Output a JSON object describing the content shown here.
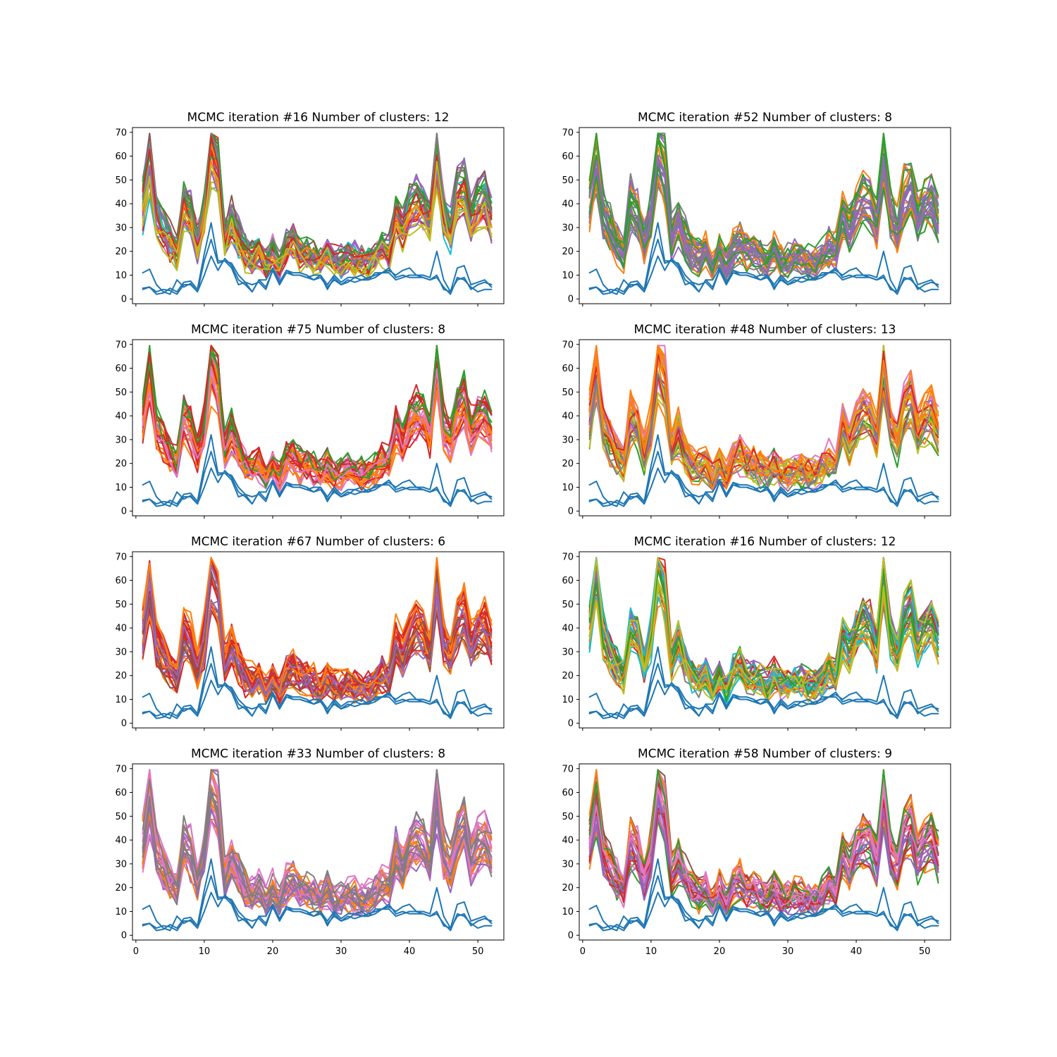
{
  "figure": {
    "palette": [
      "#1f77b4",
      "#ff7f0e",
      "#2ca02c",
      "#d62728",
      "#9467bd",
      "#8c564b",
      "#e377c2",
      "#7f7f7f",
      "#bcbd22",
      "#17becf"
    ]
  },
  "chart_data": [
    {
      "type": "line",
      "title": "MCMC iteration #16 Number of clusters: 12",
      "xlim": [
        -0.5,
        53.8
      ],
      "ylim": [
        -2,
        72
      ],
      "xticks": [
        0,
        10,
        20,
        30,
        40,
        50
      ],
      "yticks": [
        0,
        10,
        20,
        30,
        40,
        50,
        60,
        70
      ],
      "show_xticklabels": false,
      "num_clusters": 12,
      "dominant_colors": [
        "#2ca02c",
        "#ff7f0e",
        "#bcbd22",
        "#8c564b",
        "#17becf",
        "#9467bd",
        "#7f7f7f",
        "#e377c2",
        "#d62728"
      ]
    },
    {
      "type": "line",
      "title": "MCMC iteration #52 Number of clusters: 8",
      "xlim": [
        -0.5,
        53.8
      ],
      "ylim": [
        -2,
        72
      ],
      "xticks": [
        0,
        10,
        20,
        30,
        40,
        50
      ],
      "yticks": [
        0,
        10,
        20,
        30,
        40,
        50,
        60,
        70
      ],
      "show_xticklabels": false,
      "num_clusters": 8,
      "dominant_colors": [
        "#ff7f0e",
        "#2ca02c",
        "#7f7f7f",
        "#9467bd"
      ]
    },
    {
      "type": "line",
      "title": "MCMC iteration #75 Number of clusters: 8",
      "xlim": [
        -0.5,
        53.8
      ],
      "ylim": [
        -2,
        72
      ],
      "xticks": [
        0,
        10,
        20,
        30,
        40,
        50
      ],
      "yticks": [
        0,
        10,
        20,
        30,
        40,
        50,
        60,
        70
      ],
      "show_xticklabels": false,
      "num_clusters": 8,
      "dominant_colors": [
        "#ff7f0e",
        "#9467bd",
        "#8c564b",
        "#d62728",
        "#2ca02c",
        "#e377c2"
      ]
    },
    {
      "type": "line",
      "title": "MCMC iteration #48 Number of clusters: 13",
      "xlim": [
        -0.5,
        53.8
      ],
      "ylim": [
        -2,
        72
      ],
      "xticks": [
        0,
        10,
        20,
        30,
        40,
        50
      ],
      "yticks": [
        0,
        10,
        20,
        30,
        40,
        50,
        60,
        70
      ],
      "show_xticklabels": false,
      "num_clusters": 13,
      "dominant_colors": [
        "#e377c2",
        "#9467bd",
        "#ff7f0e",
        "#d62728",
        "#2ca02c",
        "#7f7f7f",
        "#bcbd22",
        "#8c564b"
      ]
    },
    {
      "type": "line",
      "title": "MCMC iteration #67 Number of clusters: 6",
      "xlim": [
        -0.5,
        53.8
      ],
      "ylim": [
        -2,
        72
      ],
      "xticks": [
        0,
        10,
        20,
        30,
        40,
        50
      ],
      "yticks": [
        0,
        10,
        20,
        30,
        40,
        50,
        60,
        70
      ],
      "show_xticklabels": false,
      "num_clusters": 6,
      "dominant_colors": [
        "#ff7f0e",
        "#d62728",
        "#9467bd",
        "#8c564b"
      ]
    },
    {
      "type": "line",
      "title": "MCMC iteration #16 Number of clusters: 12",
      "xlim": [
        -0.5,
        53.8
      ],
      "ylim": [
        -2,
        72
      ],
      "xticks": [
        0,
        10,
        20,
        30,
        40,
        50
      ],
      "yticks": [
        0,
        10,
        20,
        30,
        40,
        50,
        60,
        70
      ],
      "show_xticklabels": false,
      "num_clusters": 12,
      "dominant_colors": [
        "#2ca02c",
        "#ff7f0e",
        "#bcbd22",
        "#8c564b",
        "#17becf",
        "#9467bd",
        "#7f7f7f",
        "#e377c2",
        "#d62728"
      ]
    },
    {
      "type": "line",
      "title": "MCMC iteration #33 Number of clusters: 8",
      "xlim": [
        -0.5,
        53.8
      ],
      "ylim": [
        -2,
        72
      ],
      "xticks": [
        0,
        10,
        20,
        30,
        40,
        50
      ],
      "yticks": [
        0,
        10,
        20,
        30,
        40,
        50,
        60,
        70
      ],
      "show_xticklabels": true,
      "num_clusters": 8,
      "dominant_colors": [
        "#ff7f0e",
        "#9467bd",
        "#e377c2",
        "#7f7f7f"
      ]
    },
    {
      "type": "line",
      "title": "MCMC iteration #58 Number of clusters: 9",
      "xlim": [
        -0.5,
        53.8
      ],
      "ylim": [
        -2,
        72
      ],
      "xticks": [
        0,
        10,
        20,
        30,
        40,
        50
      ],
      "yticks": [
        0,
        10,
        20,
        30,
        40,
        50,
        60,
        70
      ],
      "show_xticklabels": true,
      "num_clusters": 9,
      "dominant_colors": [
        "#2ca02c",
        "#d62728",
        "#ff7f0e",
        "#9467bd",
        "#8c564b",
        "#e377c2"
      ]
    }
  ],
  "shared_series": {
    "x_start": 1,
    "x_end": 52,
    "high_pattern": [
      40,
      60,
      36,
      30,
      24,
      20,
      40,
      36,
      24,
      36,
      64,
      56,
      26,
      34,
      26,
      20,
      18,
      20,
      14,
      20,
      14,
      22,
      24,
      20,
      20,
      18,
      16,
      20,
      16,
      16,
      18,
      17,
      16,
      16,
      18,
      22,
      20,
      36,
      30,
      38,
      42,
      40,
      32,
      62,
      36,
      30,
      44,
      48,
      34,
      40,
      42,
      34
    ],
    "low_series": [
      [
        11,
        12.5,
        6,
        3,
        2,
        8,
        5,
        6.5,
        3,
        16,
        25,
        15,
        16,
        13,
        6,
        7,
        3,
        8,
        8,
        13,
        7,
        12,
        10,
        10,
        9,
        10,
        10,
        4,
        9,
        6,
        7,
        9,
        10,
        8,
        11,
        11,
        13,
        9,
        10,
        9,
        9,
        9,
        8,
        9,
        5,
        2,
        9,
        8,
        5,
        3,
        4,
        4
      ],
      [
        4,
        5,
        2,
        2.5,
        4.5,
        3,
        7,
        7.5,
        4,
        19,
        32,
        16,
        16,
        15,
        10,
        7,
        6,
        7,
        4,
        12,
        6,
        12,
        11,
        11,
        10,
        8,
        10,
        6,
        10,
        7,
        9,
        9,
        8,
        9,
        10,
        11,
        12,
        10,
        12,
        13,
        10,
        10,
        9,
        20,
        8,
        3,
        13,
        14,
        6,
        7,
        8,
        5
      ],
      [
        4.5,
        5,
        3,
        4,
        3.5,
        2,
        6,
        6,
        3,
        10,
        18,
        12,
        17,
        14,
        8,
        6,
        3,
        8,
        5,
        12,
        6,
        11,
        10,
        10,
        9,
        8,
        9,
        5,
        8,
        6,
        8,
        7,
        8,
        8,
        9,
        11,
        11,
        8,
        9,
        10,
        10,
        9,
        8,
        10,
        4,
        3,
        8,
        9,
        4,
        6,
        7,
        6
      ]
    ]
  }
}
